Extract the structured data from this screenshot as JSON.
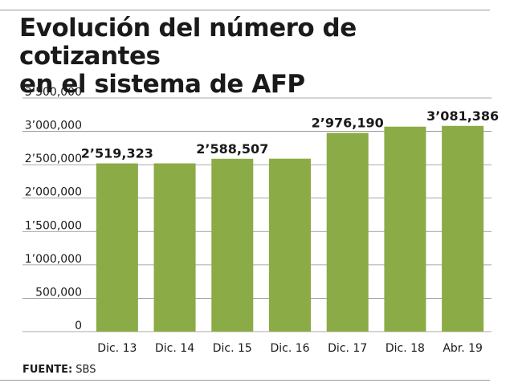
{
  "header": {
    "title_line1": "Evolución del número de cotizantes",
    "title_line2": "en el sistema de AFP"
  },
  "footer": {
    "source_label": "FUENTE:",
    "source_value": "SBS"
  },
  "colors": {
    "bar": "#8aab45",
    "grid": "#8c8c8c",
    "text": "#1a1a1a"
  },
  "chart_data": {
    "type": "bar",
    "title": "Evolución del número de cotizantes en el sistema de AFP",
    "xlabel": "",
    "ylabel": "",
    "categories": [
      "Dic. 13",
      "Dic. 14",
      "Dic. 15",
      "Dic. 16",
      "Dic. 17",
      "Dic. 18",
      "Abr. 19"
    ],
    "values": [
      2519323,
      2520000,
      2588507,
      2590000,
      2976190,
      3070000,
      3081386
    ],
    "data_labels": [
      "2’519,323",
      "",
      "2’588,507",
      "",
      "2’976,190",
      "",
      "3’081,386"
    ],
    "ylim": [
      0,
      3500000
    ],
    "yticks": [
      0,
      500000,
      1000000,
      1500000,
      2000000,
      2500000,
      3000000,
      3500000
    ],
    "ytick_labels": [
      "0",
      "500,000",
      "1’000,000",
      "1’500,000",
      "2’000,000",
      "2’500,000",
      "3’000,000",
      "3’500,000"
    ],
    "grid": true,
    "legend": "none"
  }
}
